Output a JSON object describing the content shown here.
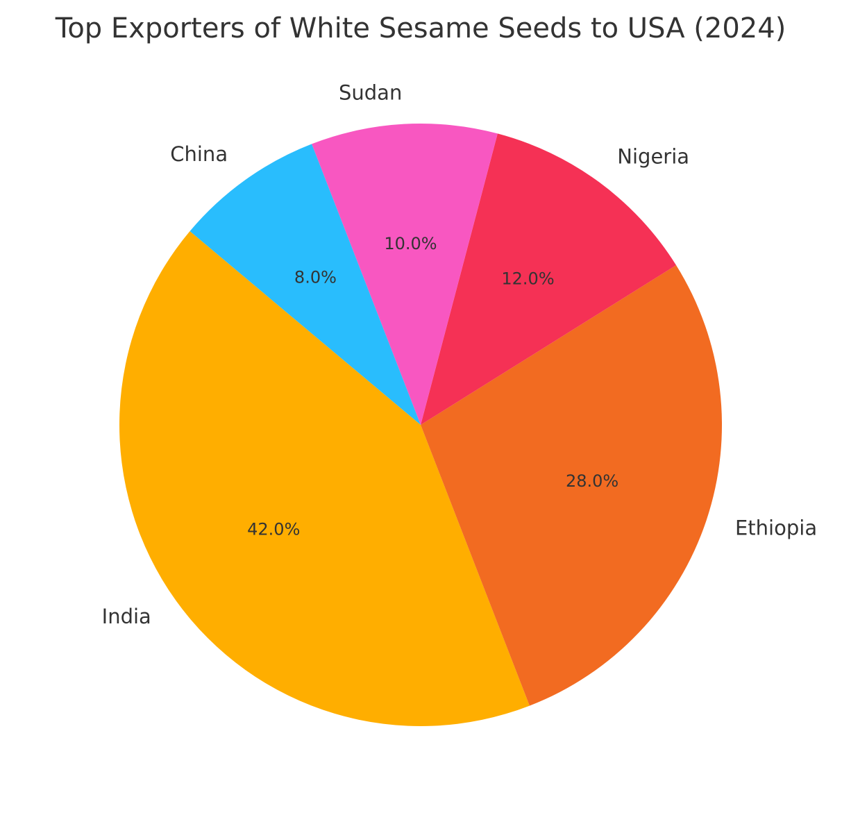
{
  "chart_data": {
    "type": "pie",
    "title": "Top Exporters of White Sesame Seeds to USA (2024)",
    "start_angle_deg": 140,
    "direction": "counterclockwise",
    "slices": [
      {
        "label": "India",
        "value": 42.0,
        "pct_label": "42.0%",
        "color": "#FFAE00"
      },
      {
        "label": "Ethiopia",
        "value": 28.0,
        "pct_label": "28.0%",
        "color": "#F26B21"
      },
      {
        "label": "Nigeria",
        "value": 12.0,
        "pct_label": "12.0%",
        "color": "#F53155"
      },
      {
        "label": "Sudan",
        "value": 10.0,
        "pct_label": "10.0%",
        "color": "#F857C1"
      },
      {
        "label": "China",
        "value": 8.0,
        "pct_label": "8.0%",
        "color": "#29BDFD"
      }
    ]
  }
}
